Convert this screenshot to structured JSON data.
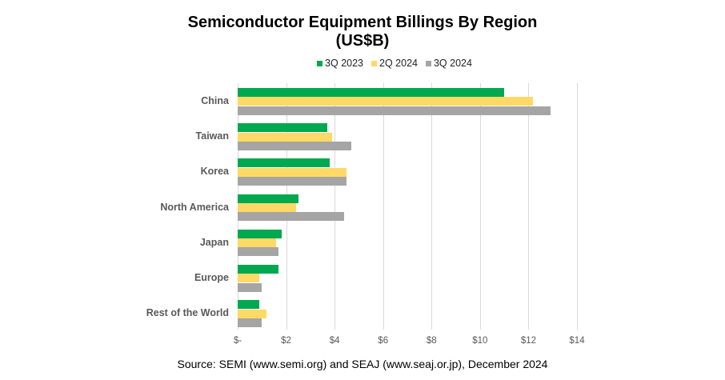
{
  "chart_data": {
    "type": "bar",
    "orientation": "horizontal",
    "title": "Semiconductor Equipment Billings By Region",
    "subtitle": "(US$B)",
    "categories": [
      "China",
      "Taiwan",
      "Korea",
      "North America",
      "Japan",
      "Europe",
      "Rest of the World"
    ],
    "series": [
      {
        "name": "3Q 2023",
        "color": "#00a84f",
        "values": [
          11.0,
          3.7,
          3.8,
          2.5,
          1.8,
          1.7,
          0.9
        ]
      },
      {
        "name": "2Q 2024",
        "color": "#ffd966",
        "values": [
          12.2,
          3.9,
          4.5,
          2.4,
          1.6,
          0.9,
          1.2
        ]
      },
      {
        "name": "3Q 2024",
        "color": "#a5a5a5",
        "values": [
          12.9,
          4.7,
          4.5,
          4.4,
          1.7,
          1.0,
          1.0
        ]
      }
    ],
    "xlabel": "",
    "ylabel": "",
    "xlim": [
      0,
      14
    ],
    "xticks": [
      "$-",
      "$2",
      "$4",
      "$6",
      "$8",
      "$10",
      "$12",
      "$14"
    ],
    "grid": true,
    "legend_position": "top"
  },
  "title_line1": "Semiconductor Equipment Billings By Region",
  "title_line2": "(US$B)",
  "source": "Source: SEMI (www.semi.org) and SEAJ (www.seaj.or.jp), December 2024"
}
